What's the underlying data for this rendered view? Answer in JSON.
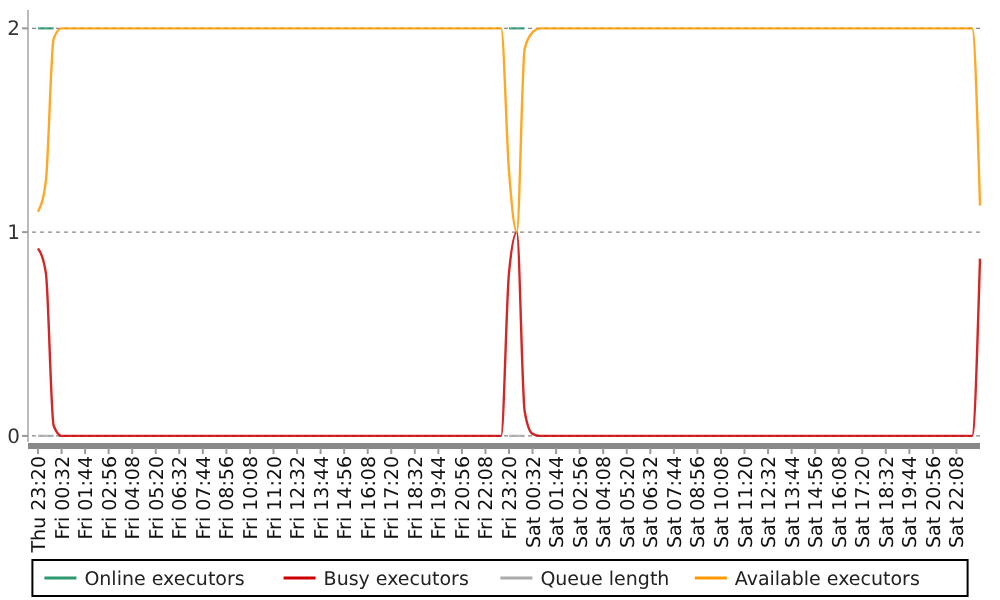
{
  "chart_data": {
    "type": "line",
    "categories": [
      "Thu 23:20",
      null,
      null,
      "Fri 00:32",
      null,
      null,
      "Fri 01:44",
      null,
      null,
      "Fri 02:56",
      null,
      null,
      "Fri 04:08",
      null,
      null,
      "Fri 05:20",
      null,
      null,
      "Fri 06:32",
      null,
      null,
      "Fri 07:44",
      null,
      null,
      "Fri 08:56",
      null,
      null,
      "Fri 10:08",
      null,
      null,
      "Fri 11:20",
      null,
      null,
      "Fri 12:32",
      null,
      null,
      "Fri 13:44",
      null,
      null,
      "Fri 14:56",
      null,
      null,
      "Fri 16:08",
      null,
      null,
      "Fri 17:20",
      null,
      null,
      "Fri 18:32",
      null,
      null,
      "Fri 19:44",
      null,
      null,
      "Fri 20:56",
      null,
      null,
      "Fri 22:08",
      null,
      null,
      "Fri 23:20",
      null,
      null,
      "Sat 00:32",
      null,
      null,
      "Sat 01:44",
      null,
      null,
      "Sat 02:56",
      null,
      null,
      "Sat 04:08",
      null,
      null,
      "Sat 05:20",
      null,
      null,
      "Sat 06:32",
      null,
      null,
      "Sat 07:44",
      null,
      null,
      "Sat 08:56",
      null,
      null,
      "Sat 10:08",
      null,
      null,
      "Sat 11:20",
      null,
      null,
      "Sat 12:32",
      null,
      null,
      "Sat 13:44",
      null,
      null,
      "Sat 14:56",
      null,
      null,
      "Sat 16:08",
      null,
      null,
      "Sat 17:20",
      null,
      null,
      "Sat 18:32",
      null,
      null,
      "Sat 19:44",
      null,
      null,
      "Sat 20:56",
      null,
      null,
      "Sat 22:08",
      null,
      null,
      null
    ],
    "ylim": [
      -0.02,
      2.09
    ],
    "yticks": [
      0,
      1,
      2
    ],
    "grid": "y",
    "legend": "bottom",
    "marker": "none",
    "line_style": "solid",
    "series": [
      {
        "name": "Online executors",
        "color": "#2e9970",
        "values": [
          2,
          2,
          2,
          null,
          null,
          null,
          null,
          null,
          null,
          null,
          null,
          null,
          null,
          null,
          null,
          null,
          null,
          null,
          null,
          null,
          null,
          null,
          null,
          null,
          null,
          null,
          null,
          null,
          null,
          null,
          null,
          null,
          null,
          null,
          null,
          null,
          null,
          null,
          null,
          null,
          null,
          null,
          null,
          null,
          null,
          null,
          null,
          null,
          null,
          null,
          null,
          null,
          null,
          null,
          null,
          null,
          null,
          null,
          null,
          null,
          2,
          2,
          2,
          null,
          null,
          null,
          null,
          null,
          null,
          null,
          null,
          null,
          null,
          null,
          null,
          null,
          null,
          null,
          null,
          null,
          null,
          null,
          null,
          null,
          null,
          null,
          null,
          null,
          null,
          null,
          null,
          null,
          null,
          null,
          null,
          null,
          null,
          null,
          null,
          null,
          null,
          null,
          null,
          null,
          null,
          null,
          null,
          null,
          null,
          null,
          null,
          null,
          null,
          null,
          null,
          null,
          null,
          null,
          null,
          null,
          null
        ]
      },
      {
        "name": "Busy executors",
        "color": "#cc0000",
        "values": [
          0.92,
          0.8,
          0.05,
          0,
          0,
          0,
          0,
          0,
          0,
          0,
          0,
          0,
          0,
          0,
          0,
          0,
          0,
          0,
          0,
          0,
          0,
          0,
          0,
          0,
          0,
          0,
          0,
          0,
          0,
          0,
          0,
          0,
          0,
          0,
          0,
          0,
          0,
          0,
          0,
          0,
          0,
          0,
          0,
          0,
          0,
          0,
          0,
          0,
          0,
          0,
          0,
          0,
          0,
          0,
          0,
          0,
          0,
          0,
          0,
          0,
          0.8,
          1,
          0.12,
          0.01,
          0,
          0,
          0,
          0,
          0,
          0,
          0,
          0,
          0,
          0,
          0,
          0,
          0,
          0,
          0,
          0,
          0,
          0,
          0,
          0,
          0,
          0,
          0,
          0,
          0,
          0,
          0,
          0,
          0,
          0,
          0,
          0,
          0,
          0,
          0,
          0,
          0,
          0,
          0,
          0,
          0,
          0,
          0,
          0,
          0,
          0,
          0,
          0,
          0,
          0,
          0,
          0,
          0,
          0,
          0,
          0,
          0.87
        ]
      },
      {
        "name": "Queue length",
        "color": "#aaaaaa",
        "values": [
          0,
          0,
          0,
          null,
          null,
          null,
          null,
          null,
          null,
          null,
          null,
          null,
          null,
          null,
          null,
          null,
          null,
          null,
          null,
          null,
          null,
          null,
          null,
          null,
          null,
          null,
          null,
          null,
          null,
          null,
          null,
          null,
          null,
          null,
          null,
          null,
          null,
          null,
          null,
          null,
          null,
          null,
          null,
          null,
          null,
          null,
          null,
          null,
          null,
          null,
          null,
          null,
          null,
          null,
          null,
          null,
          null,
          null,
          null,
          null,
          0,
          0,
          0,
          null,
          null,
          null,
          null,
          null,
          null,
          null,
          null,
          null,
          null,
          null,
          null,
          null,
          null,
          null,
          null,
          null,
          null,
          null,
          null,
          null,
          null,
          null,
          null,
          null,
          null,
          null,
          null,
          null,
          null,
          null,
          null,
          null,
          null,
          null,
          null,
          null,
          null,
          null,
          null,
          null,
          null,
          null,
          null,
          null,
          null,
          null,
          null,
          null,
          null,
          null,
          null,
          null,
          null,
          null,
          null,
          null,
          null
        ]
      },
      {
        "name": "Available executors",
        "color": "#ff9900",
        "values": [
          1.1,
          1.25,
          1.95,
          2,
          2,
          2,
          2,
          2,
          2,
          2,
          2,
          2,
          2,
          2,
          2,
          2,
          2,
          2,
          2,
          2,
          2,
          2,
          2,
          2,
          2,
          2,
          2,
          2,
          2,
          2,
          2,
          2,
          2,
          2,
          2,
          2,
          2,
          2,
          2,
          2,
          2,
          2,
          2,
          2,
          2,
          2,
          2,
          2,
          2,
          2,
          2,
          2,
          2,
          2,
          2,
          2,
          2,
          2,
          2,
          2,
          1.3,
          1,
          1.9,
          1.98,
          2,
          2,
          2,
          2,
          2,
          2,
          2,
          2,
          2,
          2,
          2,
          2,
          2,
          2,
          2,
          2,
          2,
          2,
          2,
          2,
          2,
          2,
          2,
          2,
          2,
          2,
          2,
          2,
          2,
          2,
          2,
          2,
          2,
          2,
          2,
          2,
          2,
          2,
          2,
          2,
          2,
          2,
          2,
          2,
          2,
          2,
          2,
          2,
          2,
          2,
          2,
          2,
          2,
          2,
          2,
          2,
          1.13
        ]
      }
    ]
  }
}
